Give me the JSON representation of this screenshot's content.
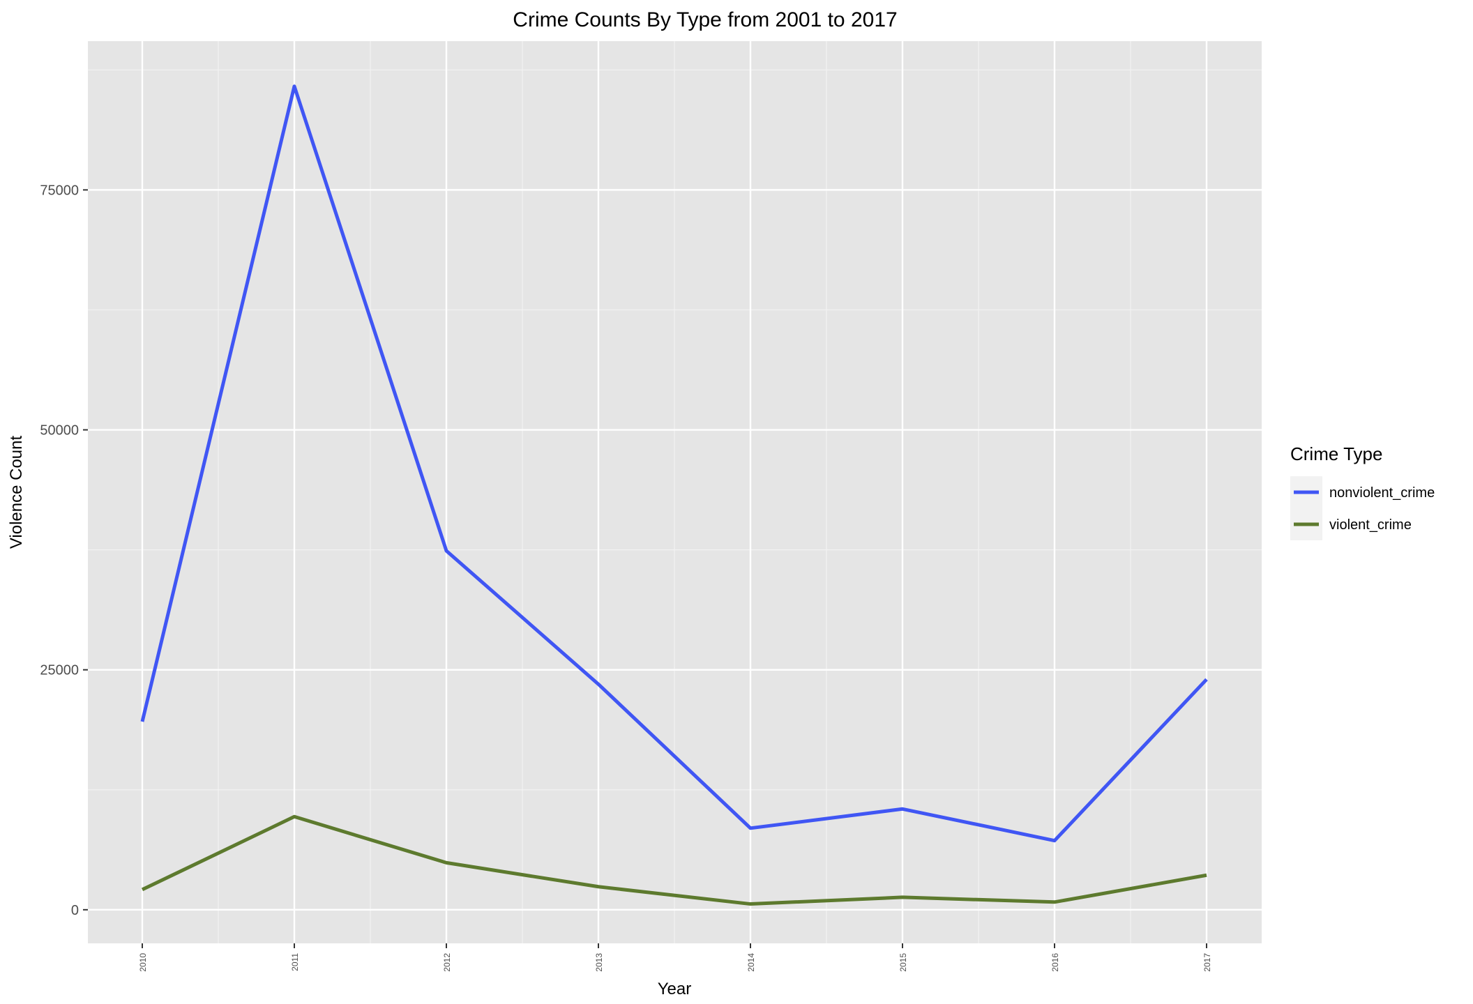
{
  "chart_data": {
    "type": "line",
    "title": "Crime Counts By Type from 2001 to 2017",
    "xlabel": "Year",
    "ylabel": "Violence Count",
    "x": [
      "2010",
      "2011",
      "2012",
      "2013",
      "2014",
      "2015",
      "2016",
      "2017"
    ],
    "yticks": [
      0,
      25000,
      50000,
      75000
    ],
    "ytick_labels": [
      "0",
      "25000",
      "50000",
      "75000"
    ],
    "ylim": [
      -3500,
      90500
    ],
    "grid": true,
    "legend": {
      "title": "Crime Type",
      "position": "right"
    },
    "series": [
      {
        "name": "nonviolent_crime",
        "color": "#4056f4",
        "values": [
          19600,
          85800,
          37400,
          23500,
          8500,
          10500,
          7200,
          24000
        ]
      },
      {
        "name": "violent_crime",
        "color": "#5d7a2e",
        "values": [
          2100,
          9700,
          4900,
          2400,
          600,
          1300,
          800,
          3600
        ]
      }
    ]
  }
}
